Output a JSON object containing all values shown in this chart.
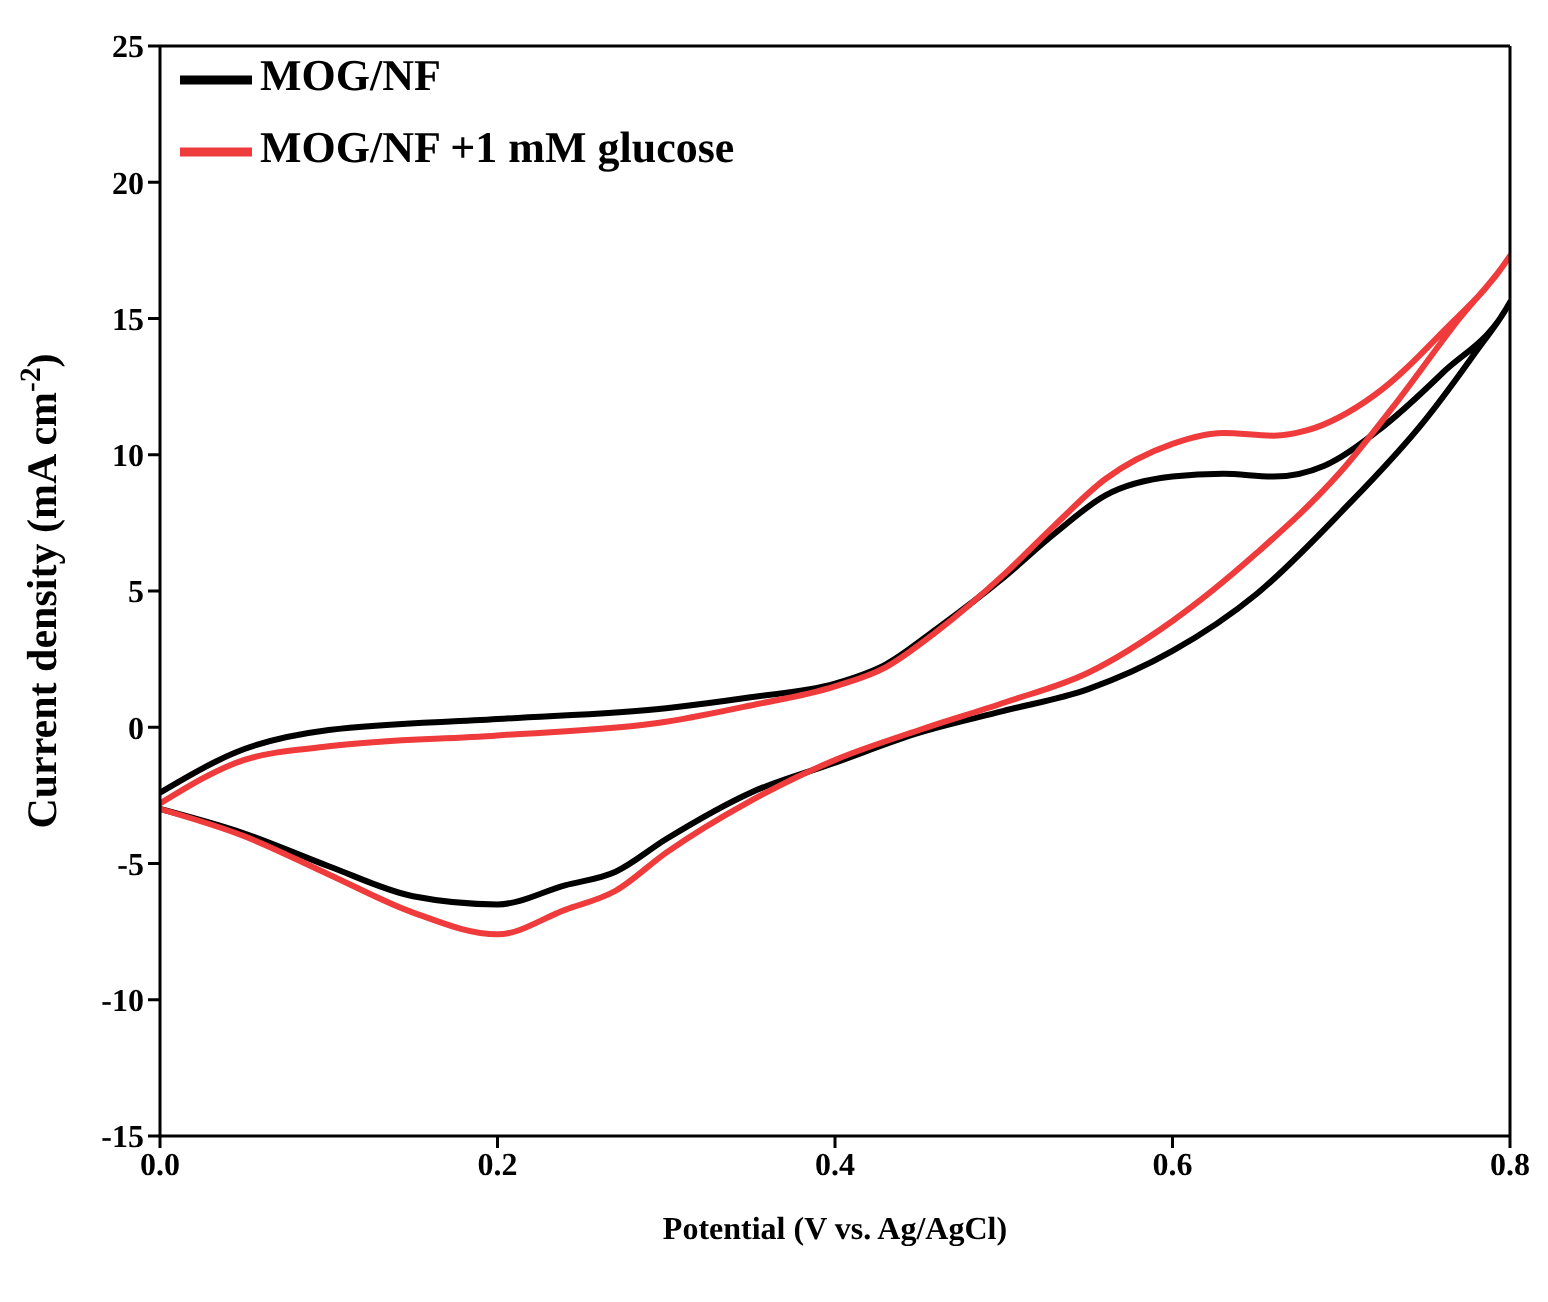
{
  "chart_data": {
    "type": "line",
    "xlabel": "Potential (V vs. Ag/AgCl)",
    "ylabel": "Current density (mA cm$^{-2}$)",
    "xlim": [
      0,
      0.8
    ],
    "xticks": [
      {
        "value": 0,
        "label": "0.0"
      },
      {
        "value": 0.2,
        "label": "0.2"
      },
      {
        "value": 0.4,
        "label": "0.4"
      },
      {
        "value": 0.6,
        "label": "0.6"
      },
      {
        "value": 0.8,
        "label": "0.8"
      }
    ],
    "ylim": [
      -15,
      25
    ],
    "yticks": [
      -15,
      -10,
      -5,
      0,
      5,
      10,
      15,
      20,
      25
    ],
    "grid": false,
    "legend": "top left",
    "marker": "none",
    "line_style": "solid",
    "series": [
      {
        "name": "MOG/NF",
        "color": "#000000",
        "x": [
          0,
          0.05,
          0.1,
          0.2,
          0.3,
          0.35,
          0.4,
          0.43,
          0.46,
          0.5,
          0.53,
          0.56,
          0.6,
          0.63,
          0.66,
          0.69,
          0.72,
          0.76,
          0.8,
          0.78,
          0.75,
          0.7,
          0.65,
          0.6,
          0.55,
          0.5,
          0.45,
          0.4,
          0.35,
          0.3,
          0.27,
          0.24,
          0.2,
          0.15,
          0.1,
          0.05,
          0
        ],
        "values": [
          -2.4,
          -0.8,
          -0.1,
          0.3,
          0.7,
          1.1,
          1.6,
          2.3,
          3.6,
          5.5,
          7.1,
          8.5,
          9.2,
          9.3,
          9.2,
          9.6,
          10.8,
          13,
          15.6,
          13.8,
          11.3,
          7.9,
          4.9,
          2.8,
          1.4,
          0.6,
          -0.2,
          -1.3,
          -2.4,
          -4.1,
          -5.3,
          -5.8,
          -6.5,
          -6.2,
          -5.1,
          -3.9,
          -3
        ]
      },
      {
        "name": "MOG/NF +1 mM glucose",
        "color": "#ef3b3b",
        "x": [
          0,
          0.05,
          0.1,
          0.2,
          0.3,
          0.35,
          0.4,
          0.43,
          0.46,
          0.5,
          0.53,
          0.56,
          0.6,
          0.63,
          0.66,
          0.68,
          0.72,
          0.76,
          0.8,
          0.77,
          0.73,
          0.7,
          0.65,
          0.6,
          0.55,
          0.5,
          0.45,
          0.4,
          0.35,
          0.3,
          0.27,
          0.24,
          0.2,
          0.15,
          0.1,
          0.05,
          0
        ],
        "values": [
          -2.8,
          -1.2,
          -0.7,
          -0.3,
          0.2,
          0.8,
          1.5,
          2.2,
          3.5,
          5.6,
          7.4,
          9.1,
          10.4,
          10.8,
          10.7,
          10.9,
          12.2,
          14.5,
          17.3,
          15,
          11.7,
          9.4,
          6.4,
          3.9,
          2,
          0.9,
          -0.1,
          -1.2,
          -2.7,
          -4.6,
          -6,
          -6.7,
          -7.6,
          -6.8,
          -5.4,
          -4,
          -3
        ]
      }
    ]
  }
}
